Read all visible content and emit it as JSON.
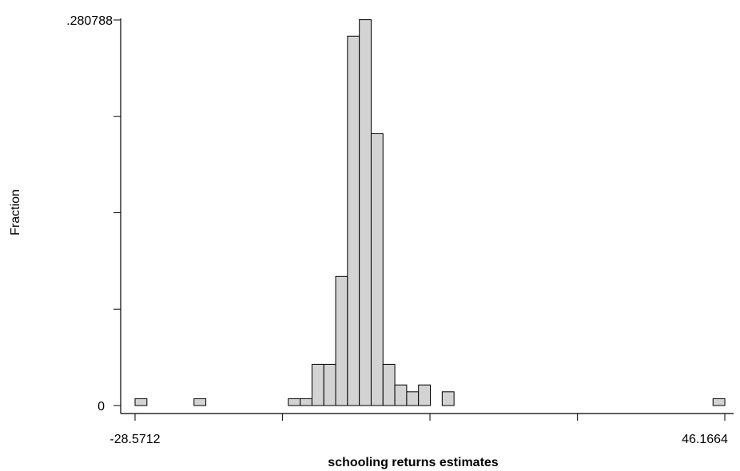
{
  "chart_data": {
    "type": "bar",
    "title": "",
    "xlabel": "schooling returns estimates",
    "ylabel": "Fraction",
    "xlim": [
      -28.5712,
      46.1664
    ],
    "ylim": [
      0,
      0.280788
    ],
    "x_tick_labels": [
      "-28.5712",
      "46.1664"
    ],
    "y_tick_labels": [
      ".280788",
      "0"
    ],
    "y_tick_values": [
      0,
      0.0702,
      0.1404,
      0.2106,
      0.280788
    ],
    "x_tick_values": [
      -28.5712,
      -9.9,
      8.8,
      27.5,
      46.1664
    ],
    "grid": false,
    "bins": [
      {
        "x0": -28.57,
        "x1": -27.07,
        "value": 0.005
      },
      {
        "x0": -21.1,
        "x1": -19.6,
        "value": 0.005
      },
      {
        "x0": -9.15,
        "x1": -7.65,
        "value": 0.005
      },
      {
        "x0": -7.65,
        "x1": -6.15,
        "value": 0.005
      },
      {
        "x0": -6.15,
        "x1": -4.65,
        "value": 0.03
      },
      {
        "x0": -4.65,
        "x1": -3.15,
        "value": 0.03
      },
      {
        "x0": -3.15,
        "x1": -1.65,
        "value": 0.094
      },
      {
        "x0": -1.65,
        "x1": -0.15,
        "value": 0.269
      },
      {
        "x0": -0.15,
        "x1": 1.35,
        "value": 0.281
      },
      {
        "x0": 1.35,
        "x1": 2.85,
        "value": 0.198
      },
      {
        "x0": 2.85,
        "x1": 4.35,
        "value": 0.03
      },
      {
        "x0": 4.35,
        "x1": 5.85,
        "value": 0.015
      },
      {
        "x0": 5.85,
        "x1": 7.35,
        "value": 0.01
      },
      {
        "x0": 7.35,
        "x1": 8.85,
        "value": 0.015
      },
      {
        "x0": 10.35,
        "x1": 11.85,
        "value": 0.01
      },
      {
        "x0": 44.67,
        "x1": 46.17,
        "value": 0.005
      }
    ]
  }
}
